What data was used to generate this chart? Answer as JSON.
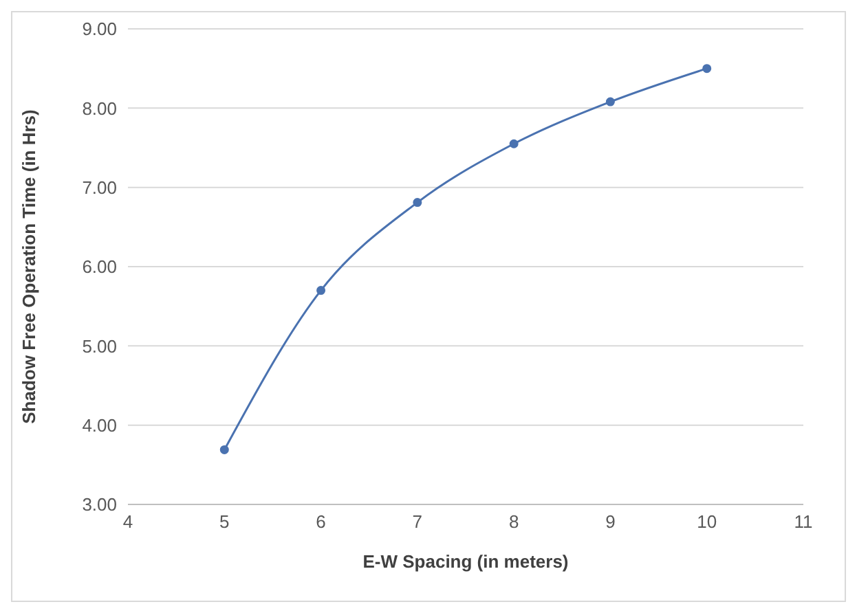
{
  "chart_data": {
    "type": "line",
    "xlabel": "E-W Spacing (in meters)",
    "ylabel": "Shadow Free Operation Time (in Hrs)",
    "x": [
      5,
      6,
      7,
      8,
      9,
      10
    ],
    "series": [
      {
        "color": "#4a72b0",
        "values": [
          3.69,
          5.7,
          6.81,
          7.55,
          8.08,
          8.5
        ]
      }
    ],
    "xlim": [
      4,
      11
    ],
    "xticks": [
      4,
      5,
      6,
      7,
      8,
      9,
      10,
      11
    ],
    "ylim": [
      3,
      9
    ],
    "yticks": [
      {
        "value": 3,
        "label": "3.00"
      },
      {
        "value": 4,
        "label": "4.00"
      },
      {
        "value": 5,
        "label": "5.00"
      },
      {
        "value": 6,
        "label": "6.00"
      },
      {
        "value": 7,
        "label": "7.00"
      },
      {
        "value": 8,
        "label": "8.00"
      },
      {
        "value": 9,
        "label": "9.00"
      }
    ],
    "grid": "y",
    "marker": "circle",
    "line_style": "solid",
    "legend": false
  }
}
